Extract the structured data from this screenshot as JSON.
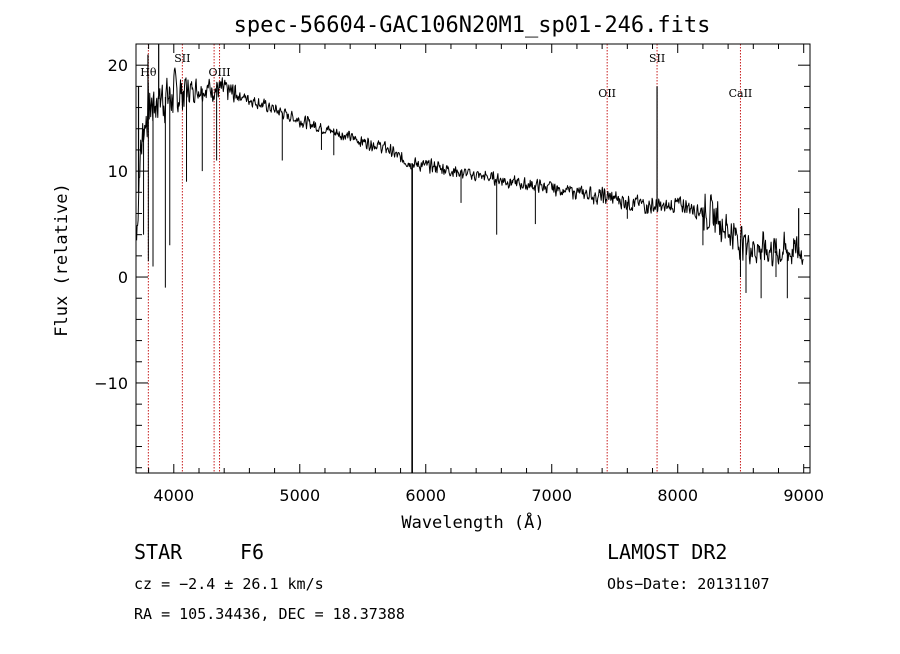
{
  "chart_data": {
    "type": "line",
    "title": "spec-56604-GAC106N20M1_sp01-246.fits",
    "xlabel": "Wavelength (Å)",
    "ylabel": "Flux (relative)",
    "xlim": [
      3700,
      9050
    ],
    "ylim": [
      -18.5,
      22
    ],
    "xticks": [
      4000,
      5000,
      6000,
      7000,
      8000,
      9000
    ],
    "xtick_labels": [
      "4000",
      "5000",
      "6000",
      "7000",
      "8000",
      "9000"
    ],
    "yticks": [
      -10,
      0,
      10,
      20
    ],
    "ytick_labels": [
      "−10",
      "0",
      "10",
      "20"
    ],
    "grid": false,
    "spectrum_anchors": {
      "x": [
        3700,
        3730,
        3760,
        3800,
        3850,
        3900,
        3950,
        4000,
        4050,
        4100,
        4200,
        4300,
        4400,
        4500,
        4600,
        4700,
        4800,
        4900,
        5000,
        5100,
        5200,
        5300,
        5400,
        5500,
        5600,
        5700,
        5800,
        5900,
        6000,
        6100,
        6200,
        6300,
        6400,
        6500,
        6600,
        6700,
        6800,
        6900,
        7000,
        7100,
        7200,
        7300,
        7400,
        7500,
        7600,
        7700,
        7800,
        7900,
        8000,
        8100,
        8200,
        8300,
        8400,
        8500,
        8600,
        8700,
        8800,
        8900,
        9000
      ],
      "y": [
        2,
        11,
        14,
        16,
        16.5,
        17,
        17,
        17.2,
        17.4,
        17.6,
        17.8,
        17.8,
        17.6,
        17.2,
        16.8,
        16.3,
        15.8,
        15.3,
        14.8,
        14.4,
        14,
        13.6,
        13.2,
        12.8,
        12.5,
        12.1,
        11.2,
        10.7,
        10.5,
        10.4,
        10.1,
        9.8,
        9.6,
        9.4,
        9.2,
        8.9,
        8.7,
        8.6,
        8.4,
        8.2,
        8,
        7.8,
        7.6,
        7.4,
        7.1,
        6.9,
        6.7,
        6.5,
        6.9,
        6.6,
        6.2,
        5.7,
        4.5,
        3.5,
        2.8,
        2.6,
        2.4,
        2.4,
        2.6
      ]
    },
    "absorption_features": [
      {
        "x": 3760,
        "y": 4
      },
      {
        "x": 3798,
        "y": 1.5
      },
      {
        "x": 3835,
        "y": 1
      },
      {
        "x": 3933,
        "y": -1
      },
      {
        "x": 3968,
        "y": 3
      },
      {
        "x": 4101,
        "y": 9
      },
      {
        "x": 4226,
        "y": 10
      },
      {
        "x": 4340,
        "y": 11
      },
      {
        "x": 4861,
        "y": 11
      },
      {
        "x": 5172,
        "y": 12
      },
      {
        "x": 5270,
        "y": 11.5
      },
      {
        "x": 5892,
        "y": -18.5
      },
      {
        "x": 6280,
        "y": 7
      },
      {
        "x": 6563,
        "y": 4
      },
      {
        "x": 6870,
        "y": 5
      },
      {
        "x": 7600,
        "y": 5.5
      },
      {
        "x": 8200,
        "y": 3
      },
      {
        "x": 8498,
        "y": 0
      },
      {
        "x": 8542,
        "y": -1.5
      },
      {
        "x": 8662,
        "y": -2
      },
      {
        "x": 8780,
        "y": 0
      },
      {
        "x": 8870,
        "y": -2
      }
    ],
    "emission_features": [
      {
        "x": 3720,
        "y": 18
      },
      {
        "x": 3795,
        "y": 21
      },
      {
        "x": 3880,
        "y": 22
      },
      {
        "x": 7836,
        "y": 18
      },
      {
        "x": 8960,
        "y": 6.5
      }
    ],
    "line_markers": [
      {
        "x": 3798,
        "label": "Hθ",
        "label_y": 19
      },
      {
        "x": 4068,
        "label": "SII",
        "label_y": 20.3
      },
      {
        "x": 4320,
        "label": "",
        "label_y": 0
      },
      {
        "x": 4363,
        "label": "OIII",
        "label_y": 19
      },
      {
        "x": 7440,
        "label": "OII",
        "label_y": 17
      },
      {
        "x": 7836,
        "label": "SII",
        "label_y": 20.3
      },
      {
        "x": 8498,
        "label": "CaII",
        "label_y": 17
      }
    ]
  },
  "info": {
    "object_class": "STAR",
    "subclass": "F6",
    "survey": "LAMOST DR2",
    "redshift_line": "cz = −2.4 ± 26.1 km/s",
    "obs_date": "Obs−Date: 20131107",
    "coords": "RA = 105.34436, DEC =  18.37388"
  },
  "colors": {
    "spectrum": "#000000",
    "marker_line": "#c81e1e",
    "background": "#ffffff"
  }
}
